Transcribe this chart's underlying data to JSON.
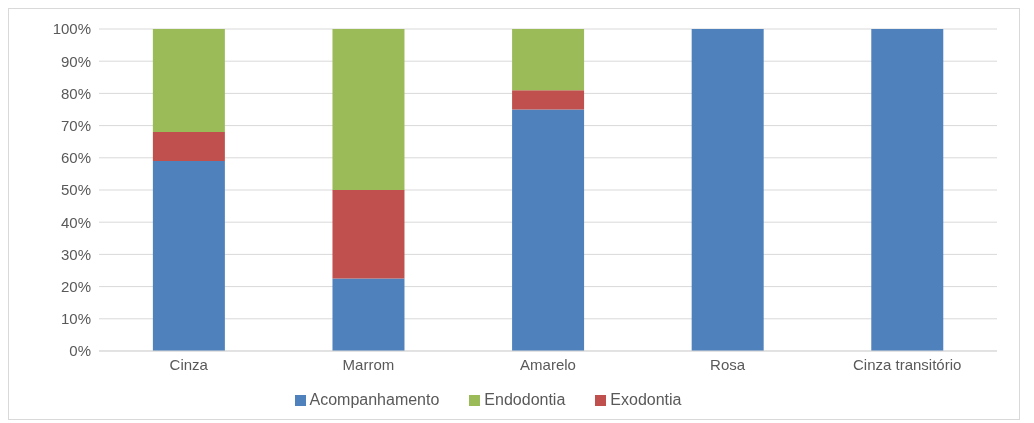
{
  "chart_data": {
    "type": "bar",
    "stacked": true,
    "categories": [
      "Cinza",
      "Marrom",
      "Amarelo",
      "Rosa",
      "Cinza transitório"
    ],
    "series": [
      {
        "name": "Acompanhamento",
        "color": "#4f81bd",
        "values": [
          59,
          22.5,
          75,
          100,
          100
        ]
      },
      {
        "name": "Exodontia",
        "color": "#c0504d",
        "values": [
          9,
          27.5,
          6,
          0,
          0
        ]
      },
      {
        "name": "Endodontia",
        "color": "#9bbb59",
        "values": [
          32,
          50,
          19,
          0,
          0
        ]
      }
    ],
    "ylim": [
      0,
      100
    ],
    "yticks": [
      {
        "value": 0,
        "label": "0%"
      },
      {
        "value": 10,
        "label": "10%"
      },
      {
        "value": 20,
        "label": "20%"
      },
      {
        "value": 30,
        "label": "30%"
      },
      {
        "value": 40,
        "label": "40%"
      },
      {
        "value": 50,
        "label": "50%"
      },
      {
        "value": 60,
        "label": "60%"
      },
      {
        "value": 70,
        "label": "70%"
      },
      {
        "value": 80,
        "label": "80%"
      },
      {
        "value": 90,
        "label": "90%"
      },
      {
        "value": 100,
        "label": "100%"
      }
    ],
    "grid": "y",
    "legend": "bottom"
  }
}
